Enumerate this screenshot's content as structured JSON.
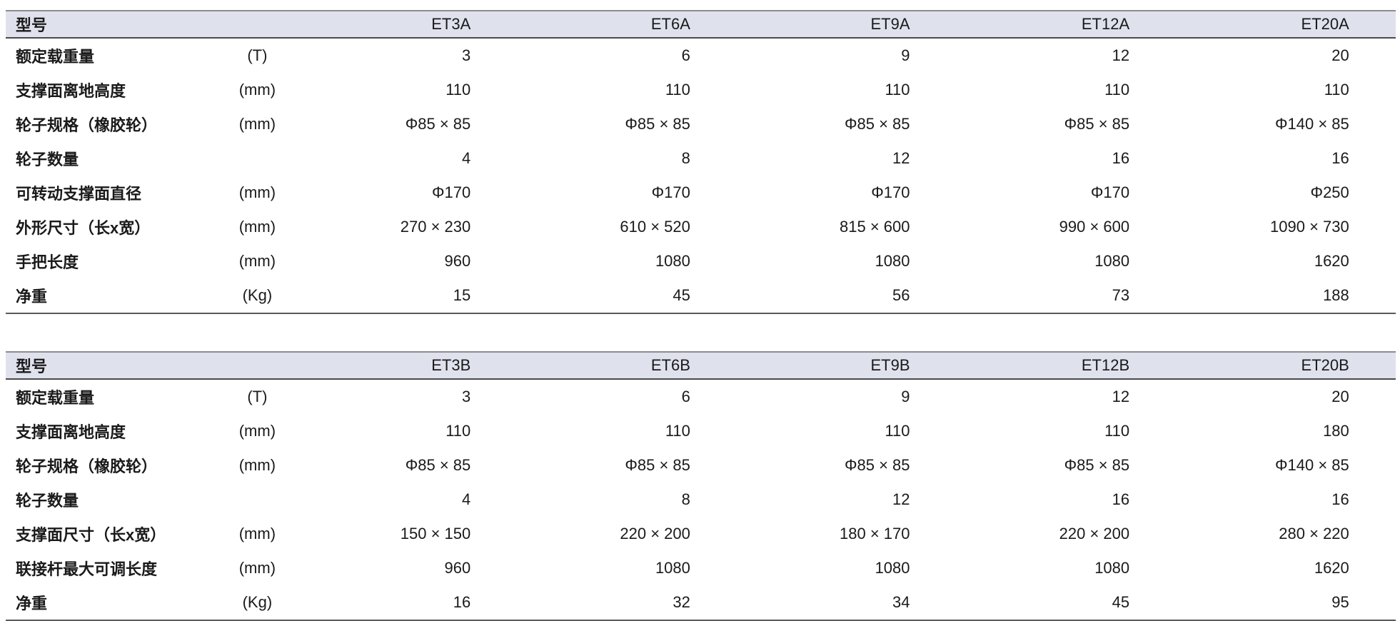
{
  "colors": {
    "header_bg": "#dfe1ed",
    "rule_top": "#8c8c8c",
    "rule_under_header": "#4a4a4a",
    "rule_bottom": "#5a5a5a",
    "text": "#1a1a1a"
  },
  "tables": [
    {
      "id": "series-a",
      "header": {
        "model_label": "型号",
        "unit_label": "",
        "models": [
          "ET3A",
          "ET6A",
          "ET9A",
          "ET12A",
          "ET20A"
        ]
      },
      "rows": [
        {
          "label": "额定载重量",
          "unit": "(T)",
          "values": [
            "3",
            "6",
            "9",
            "12",
            "20"
          ]
        },
        {
          "label": "支撑面离地高度",
          "unit": "(mm)",
          "values": [
            "110",
            "110",
            "110",
            "110",
            "110"
          ]
        },
        {
          "label": "轮子规格（橡胶轮）",
          "unit": "(mm)",
          "values": [
            "Φ85 × 85",
            "Φ85 × 85",
            "Φ85 × 85",
            "Φ85 × 85",
            "Φ140 × 85"
          ]
        },
        {
          "label": "轮子数量",
          "unit": "",
          "values": [
            "4",
            "8",
            "12",
            "16",
            "16"
          ]
        },
        {
          "label": "可转动支撑面直径",
          "unit": "(mm)",
          "values": [
            "Φ170",
            "Φ170",
            "Φ170",
            "Φ170",
            "Φ250"
          ]
        },
        {
          "label": "外形尺寸（长x宽）",
          "unit": "(mm)",
          "values": [
            "270 × 230",
            "610 × 520",
            "815 × 600",
            "990 × 600",
            "1090 × 730"
          ]
        },
        {
          "label": "手把长度",
          "unit": "(mm)",
          "values": [
            "960",
            "1080",
            "1080",
            "1080",
            "1620"
          ]
        },
        {
          "label": "净重",
          "unit": "(Kg)",
          "values": [
            "15",
            "45",
            "56",
            "73",
            "188"
          ]
        }
      ]
    },
    {
      "id": "series-b",
      "header": {
        "model_label": "型号",
        "unit_label": "",
        "models": [
          "ET3B",
          "ET6B",
          "ET9B",
          "ET12B",
          "ET20B"
        ]
      },
      "rows": [
        {
          "label": "额定载重量",
          "unit": "(T)",
          "values": [
            "3",
            "6",
            "9",
            "12",
            "20"
          ]
        },
        {
          "label": "支撑面离地高度",
          "unit": "(mm)",
          "values": [
            "110",
            "110",
            "110",
            "110",
            "180"
          ]
        },
        {
          "label": "轮子规格（橡胶轮）",
          "unit": "(mm)",
          "values": [
            "Φ85 × 85",
            "Φ85 × 85",
            "Φ85 × 85",
            "Φ85 × 85",
            "Φ140 × 85"
          ]
        },
        {
          "label": "轮子数量",
          "unit": "",
          "values": [
            "4",
            "8",
            "12",
            "16",
            "16"
          ]
        },
        {
          "label": "支撑面尺寸（长x宽）",
          "unit": "(mm)",
          "values": [
            "150 × 150",
            "220 × 200",
            "180 × 170",
            "220 × 200",
            "280 × 220"
          ]
        },
        {
          "label": "联接杆最大可调长度",
          "unit": "(mm)",
          "values": [
            "960",
            "1080",
            "1080",
            "1080",
            "1620"
          ]
        },
        {
          "label": "净重",
          "unit": "(Kg)",
          "values": [
            "16",
            "32",
            "34",
            "45",
            "95"
          ]
        }
      ]
    }
  ]
}
